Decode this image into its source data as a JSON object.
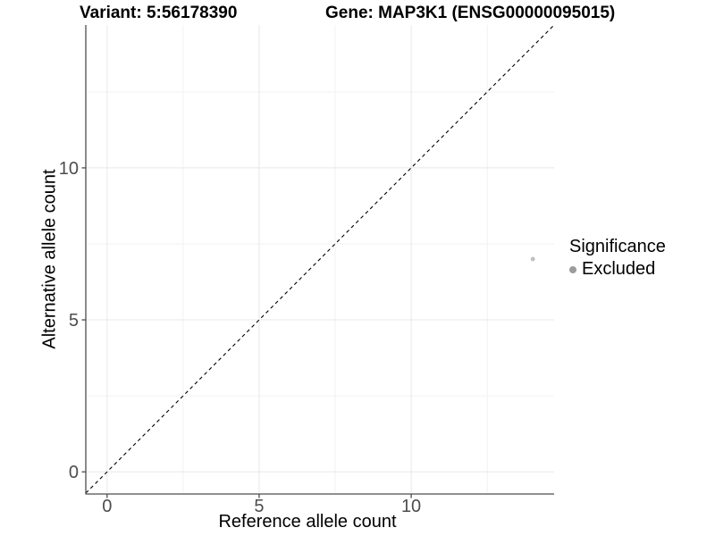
{
  "chart_data": {
    "type": "scatter",
    "titles": {
      "left": "Variant: 5:56178390",
      "right": "Gene: MAP3K1 (ENSG00000095015)"
    },
    "xlabel": "Reference allele count",
    "ylabel": "Alternative allele count",
    "xlim": [
      -0.7,
      14.7
    ],
    "ylim": [
      -0.7,
      14.7
    ],
    "x_ticks": [
      0,
      5,
      10
    ],
    "y_ticks": [
      0,
      5,
      10
    ],
    "x_minor_ticks": [
      2.5,
      7.5,
      12.5
    ],
    "y_minor_ticks": [
      2.5,
      7.5,
      12.5
    ],
    "grid": true,
    "reference_line": {
      "kind": "identity",
      "style": "dashed"
    },
    "series": [
      {
        "name": "Excluded",
        "points": [
          [
            14,
            7
          ]
        ],
        "point_radius": 2.4
      }
    ],
    "legend": {
      "position": "right",
      "title": "Significance",
      "items": [
        {
          "label": "Excluded",
          "swatch_radius": 4
        }
      ]
    }
  },
  "colors": {
    "background": "#ffffff",
    "grid_major": "#e8e8e8",
    "grid_minor": "#f2f2f2",
    "axis_line": "#4d4d4d",
    "tick_label": "#4d4d4d",
    "text": "#000000",
    "point": "#bfbfbf",
    "legend_point": "#9c9c9c",
    "reference_line": "#000000"
  }
}
